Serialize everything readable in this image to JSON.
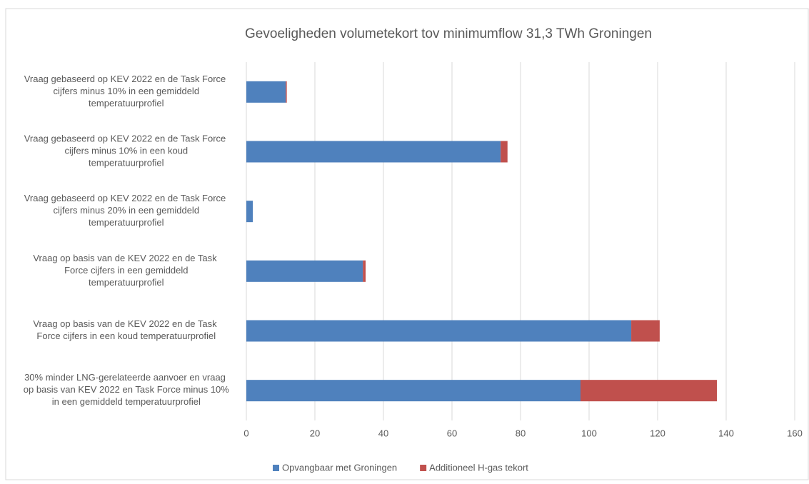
{
  "chart_data": {
    "type": "stacked-barh",
    "title": "Gevoeligheden volumetekort tov minimumflow 31,3 TWh Groningen",
    "categories": [
      "Vraag gebaseerd op KEV 2022 en de Task Force cijfers minus 10% in een gemiddeld temperatuurprofiel",
      "Vraag gebaseerd op KEV 2022 en de Task Force cijfers minus 10% in een koud temperatuurprofiel",
      "Vraag gebaseerd op KEV 2022 en de Task Force cijfers minus 20% in een gemiddeld temperatuurprofiel",
      "Vraag op basis van de KEV 2022 en de Task Force cijfers in een gemiddeld temperatuurprofiel",
      "Vraag op basis van de KEV 2022 en de Task Force cijfers in een koud temperatuurprofiel",
      "30% minder LNG-gerelateerde aanvoer en vraag op basis van KEV 2022 en Task Force minus 10% in een gemiddeld temperatuurprofiel"
    ],
    "series": [
      {
        "name": "Opvangbaar met Groningen",
        "color": "#4f81bd",
        "values": [
          11.5,
          74.2,
          1.9,
          34,
          112.3,
          97.5
        ]
      },
      {
        "name": "Additioneel H-gas tekort",
        "color": "#c0504d",
        "values": [
          0.3,
          2,
          0,
          0.8,
          8.3,
          39.8
        ]
      }
    ],
    "xlim": [
      0,
      160
    ],
    "xticks": [
      0,
      20,
      40,
      60,
      80,
      100,
      120,
      140,
      160
    ],
    "grid": true,
    "legend": "bottom"
  }
}
